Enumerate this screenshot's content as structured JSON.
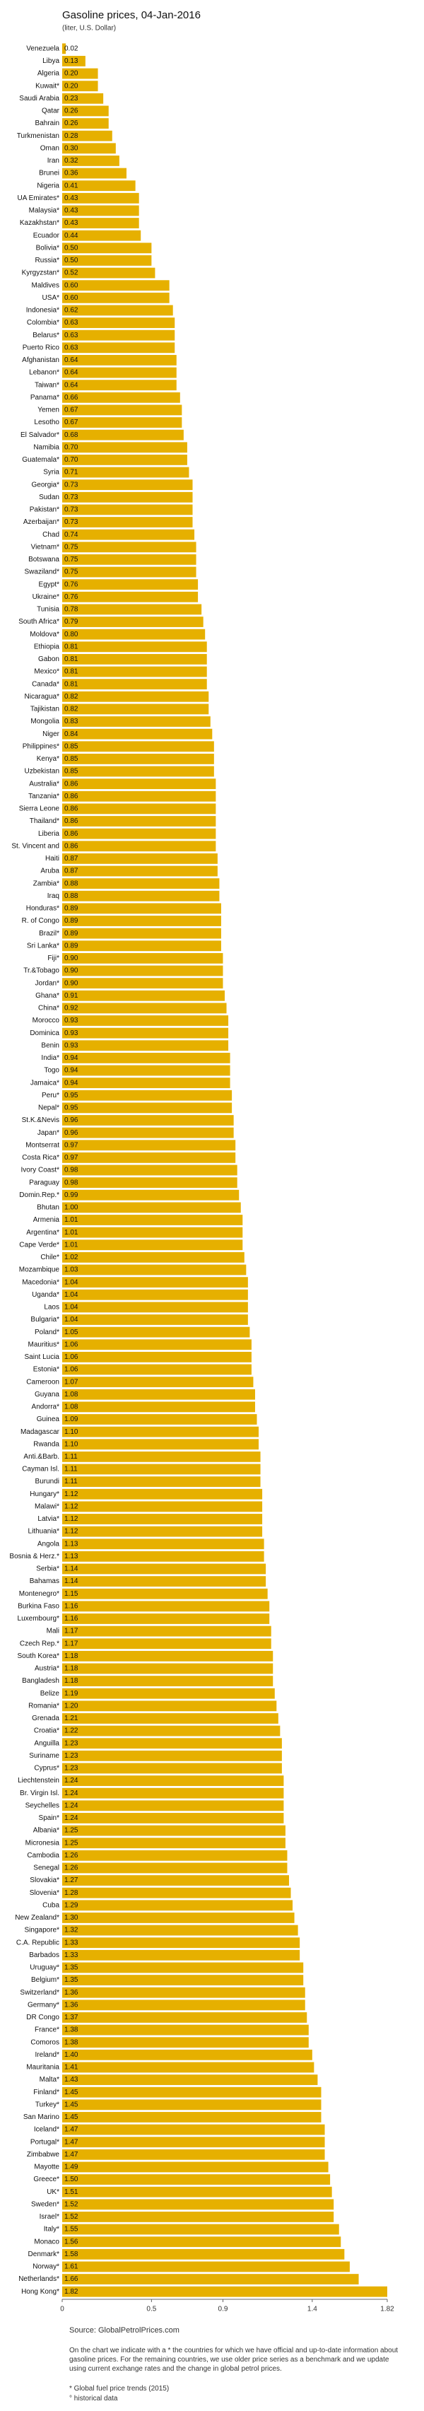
{
  "chart_data": {
    "type": "bar",
    "orientation": "horizontal",
    "title": "Gasoline prices, 04-Jan-2016",
    "subtitle": "(liter, U.S. Dollar)",
    "source": "Source: GlobalPetrolPrices.com",
    "footnote": "On the chart we indicate with a * the countries for which we have official and up-to-date information about gasoline prices. For the remaining countries, we use older price series as a benchmark and we update using current exchange rates and the change in global petrol prices.",
    "legend_notes": [
      "Global fuel price trends (2015)",
      "historical data"
    ],
    "color": "#e6b000",
    "xlim": [
      0,
      1.82
    ],
    "xticks": [
      0,
      0.5,
      0.9,
      1.4,
      1.82
    ],
    "categories": [
      "Venezuela",
      "Libya",
      "Algeria",
      "Kuwait*",
      "Saudi Arabia",
      "Qatar",
      "Bahrain",
      "Turkmenistan",
      "Oman",
      "Iran",
      "Brunei",
      "Nigeria",
      "UA Emirates*",
      "Malaysia*",
      "Kazakhstan*",
      "Ecuador",
      "Bolivia*",
      "Russia*",
      "Kyrgyzstan*",
      "Maldives",
      "USA*",
      "Indonesia*",
      "Colombia*",
      "Belarus*",
      "Puerto Rico",
      "Afghanistan",
      "Lebanon*",
      "Taiwan*",
      "Panama*",
      "Yemen",
      "Lesotho",
      "El Salvador*",
      "Namibia",
      "Guatemala*",
      "Syria",
      "Georgia*",
      "Sudan",
      "Pakistan*",
      "Azerbaijan*",
      "Chad",
      "Vietnam*",
      "Botswana",
      "Swaziland*",
      "Egypt*",
      "Ukraine*",
      "Tunisia",
      "South Africa*",
      "Moldova*",
      "Ethiopia",
      "Gabon",
      "Mexico*",
      "Canada*",
      "Nicaragua*",
      "Tajikistan",
      "Mongolia",
      "Niger",
      "Philippines*",
      "Kenya*",
      "Uzbekistan",
      "Australia*",
      "Tanzania*",
      "Sierra Leone",
      "Thailand*",
      "Liberia",
      "St. Vincent and",
      "Haiti",
      "Aruba",
      "Zambia*",
      "Iraq",
      "Honduras*",
      "R. of Congo",
      "Brazil*",
      "Sri Lanka*",
      "Fiji*",
      "Tr.&Tobago",
      "Jordan*",
      "Ghana*",
      "China*",
      "Morocco",
      "Dominica",
      "Benin",
      "India*",
      "Togo",
      "Jamaica*",
      "Peru*",
      "Nepal*",
      "St.K.&Nevis",
      "Japan*",
      "Montserrat",
      "Costa Rica*",
      "Ivory Coast*",
      "Paraguay",
      "Domin.Rep.*",
      "Bhutan",
      "Armenia",
      "Argentina*",
      "Cape Verde*",
      "Chile*",
      "Mozambique",
      "Macedonia*",
      "Uganda*",
      "Laos",
      "Bulgaria*",
      "Poland*",
      "Mauritius*",
      "Saint Lucia",
      "Estonia*",
      "Cameroon",
      "Guyana",
      "Andorra*",
      "Guinea",
      "Madagascar",
      "Rwanda",
      "Anti.&Barb.",
      "Cayman Isl.",
      "Burundi",
      "Hungary*",
      "Malawi*",
      "Latvia*",
      "Lithuania*",
      "Angola",
      "Bosnia & Herz.*",
      "Serbia*",
      "Bahamas",
      "Montenegro*",
      "Burkina Faso",
      "Luxembourg*",
      "Mali",
      "Czech Rep.*",
      "South Korea*",
      "Austria*",
      "Bangladesh",
      "Belize",
      "Romania*",
      "Grenada",
      "Croatia*",
      "Anguilla",
      "Suriname",
      "Cyprus*",
      "Liechtenstein",
      "Br. Virgin Isl.",
      "Seychelles",
      "Spain*",
      "Albania*",
      "Micronesia",
      "Cambodia",
      "Senegal",
      "Slovakia*",
      "Slovenia*",
      "Cuba",
      "New Zealand*",
      "Singapore*",
      "C.A. Republic",
      "Barbados",
      "Uruguay*",
      "Belgium*",
      "Switzerland*",
      "Germany*",
      "DR Congo",
      "France*",
      "Comoros",
      "Ireland*",
      "Mauritania",
      "Malta*",
      "Finland*",
      "Turkey*",
      "San Marino",
      "Iceland*",
      "Portugal*",
      "Zimbabwe",
      "Mayotte",
      "Greece*",
      "UK*",
      "Sweden*",
      "Israel*",
      "Italy*",
      "Monaco",
      "Denmark*",
      "Norway*",
      "Netherlands*",
      "Hong Kong*"
    ],
    "values": [
      0.02,
      0.13,
      0.2,
      0.2,
      0.23,
      0.26,
      0.26,
      0.28,
      0.3,
      0.32,
      0.36,
      0.41,
      0.43,
      0.43,
      0.43,
      0.44,
      0.5,
      0.5,
      0.52,
      0.6,
      0.6,
      0.62,
      0.63,
      0.63,
      0.63,
      0.64,
      0.64,
      0.64,
      0.66,
      0.67,
      0.67,
      0.68,
      0.7,
      0.7,
      0.71,
      0.73,
      0.73,
      0.73,
      0.73,
      0.74,
      0.75,
      0.75,
      0.75,
      0.76,
      0.76,
      0.78,
      0.79,
      0.8,
      0.81,
      0.81,
      0.81,
      0.81,
      0.82,
      0.82,
      0.83,
      0.84,
      0.85,
      0.85,
      0.85,
      0.86,
      0.86,
      0.86,
      0.86,
      0.86,
      0.86,
      0.87,
      0.87,
      0.88,
      0.88,
      0.89,
      0.89,
      0.89,
      0.89,
      0.9,
      0.9,
      0.9,
      0.91,
      0.92,
      0.93,
      0.93,
      0.93,
      0.94,
      0.94,
      0.94,
      0.95,
      0.95,
      0.96,
      0.96,
      0.97,
      0.97,
      0.98,
      0.98,
      0.99,
      1,
      1.01,
      1.01,
      1.01,
      1.02,
      1.03,
      1.04,
      1.04,
      1.04,
      1.04,
      1.05,
      1.06,
      1.06,
      1.06,
      1.07,
      1.08,
      1.08,
      1.09,
      1.1,
      1.1,
      1.11,
      1.11,
      1.11,
      1.12,
      1.12,
      1.12,
      1.12,
      1.13,
      1.13,
      1.14,
      1.14,
      1.15,
      1.16,
      1.16,
      1.17,
      1.17,
      1.18,
      1.18,
      1.18,
      1.19,
      1.2,
      1.21,
      1.22,
      1.23,
      1.23,
      1.23,
      1.24,
      1.24,
      1.24,
      1.24,
      1.25,
      1.25,
      1.26,
      1.26,
      1.27,
      1.28,
      1.29,
      1.3,
      1.32,
      1.33,
      1.33,
      1.35,
      1.35,
      1.36,
      1.36,
      1.37,
      1.38,
      1.38,
      1.4,
      1.41,
      1.43,
      1.45,
      1.45,
      1.45,
      1.47,
      1.47,
      1.47,
      1.49,
      1.5,
      1.51,
      1.52,
      1.52,
      1.55,
      1.56,
      1.58,
      1.61,
      1.66,
      1.82
    ],
    "value_labels": [
      "0.02",
      "0.13",
      "0.20",
      "0.20",
      "0.23",
      "0.26",
      "0.26",
      "0.28",
      "0.30",
      "0.32",
      "0.36",
      "0.41",
      "0.43",
      "0.43",
      "0.43",
      "0.44",
      "0.50",
      "0.50",
      "0.52",
      "0.60",
      "0.60",
      "0.62",
      "0.63",
      "0.63",
      "0.63",
      "0.64",
      "0.64",
      "0.64",
      "0.66",
      "0.67",
      "0.67",
      "0.68",
      "0.70",
      "0.70",
      "0.71",
      "0.73",
      "0.73",
      "0.73",
      "0.73",
      "0.74",
      "0.75",
      "0.75",
      "0.75",
      "0.76",
      "0.76",
      "0.78",
      "0.79",
      "0.80",
      "0.81",
      "0.81",
      "0.81",
      "0.81",
      "0.82",
      "0.82",
      "0.83",
      "0.84",
      "0.85",
      "0.85",
      "0.85",
      "0.86",
      "0.86",
      "0.86",
      "0.86",
      "0.86",
      "0.86",
      "0.87",
      "0.87",
      "0.88",
      "0.88",
      "0.89",
      "0.89",
      "0.89",
      "0.89",
      "0.90",
      "0.90",
      "0.90",
      "0.91",
      "0.92",
      "0.93",
      "0.93",
      "0.93",
      "0.94",
      "0.94",
      "0.94",
      "0.95",
      "0.95",
      "0.96",
      "0.96",
      "0.97",
      "0.97",
      "0.98",
      "0.98",
      "0.99",
      "1.00",
      "1.01",
      "1.01",
      "1.01",
      "1.02",
      "1.03",
      "1.04",
      "1.04",
      "1.04",
      "1.04",
      "1.05",
      "1.06",
      "1.06",
      "1.06",
      "1.07",
      "1.08",
      "1.08",
      "1.09",
      "1.10",
      "1.10",
      "1.11",
      "1.11",
      "1.11",
      "1.12",
      "1.12",
      "1.12",
      "1.12",
      "1.13",
      "1.13",
      "1.14",
      "1.14",
      "1.15",
      "1.16",
      "1.16",
      "1.17",
      "1.17",
      "1.18",
      "1.18",
      "1.18",
      "1.19",
      "1.20",
      "1.21",
      "1.22",
      "1.23",
      "1.23",
      "1.23",
      "1.24",
      "1.24",
      "1.24",
      "1.24",
      "1.25",
      "1.25",
      "1.26",
      "1.26",
      "1.27",
      "1.28",
      "1.29",
      "1.30",
      "1.32",
      "1.33",
      "1.33",
      "1.35",
      "1.35",
      "1.36",
      "1.36",
      "1.37",
      "1.38",
      "1.38",
      "1.40",
      "1.41",
      "1.43",
      "1.45",
      "1.45",
      "1.45",
      "1.47",
      "1.47",
      "1.47",
      "1.49",
      "1.50",
      "1.51",
      "1.52",
      "1.52",
      "1.55",
      "1.56",
      "1.58",
      "1.61",
      "1.66",
      "1.82"
    ]
  }
}
